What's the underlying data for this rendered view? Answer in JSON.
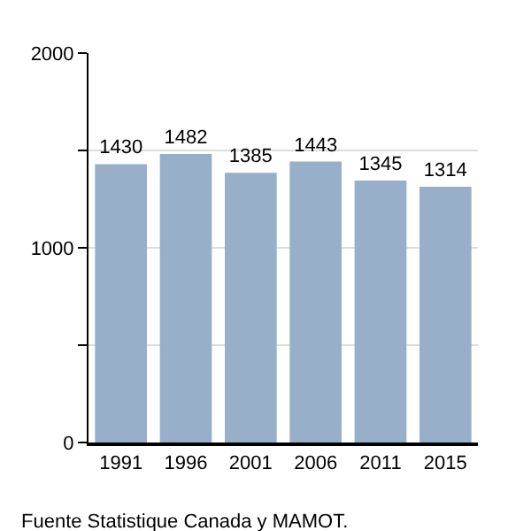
{
  "chart_data": {
    "type": "bar",
    "categories": [
      "1991",
      "1996",
      "2001",
      "2006",
      "2011",
      "2015"
    ],
    "values": [
      1430,
      1482,
      1385,
      1443,
      1345,
      1314
    ],
    "color": "#97afc9",
    "data_labels": true,
    "ylim": [
      0,
      2000
    ],
    "yticks": [
      0,
      {
        "value": 500,
        "label": null
      },
      1000,
      {
        "value": 1500,
        "label": null
      },
      2000
    ],
    "grid": "y",
    "annotations": [
      "Fuente Statistique Canada y MAMOT."
    ]
  }
}
